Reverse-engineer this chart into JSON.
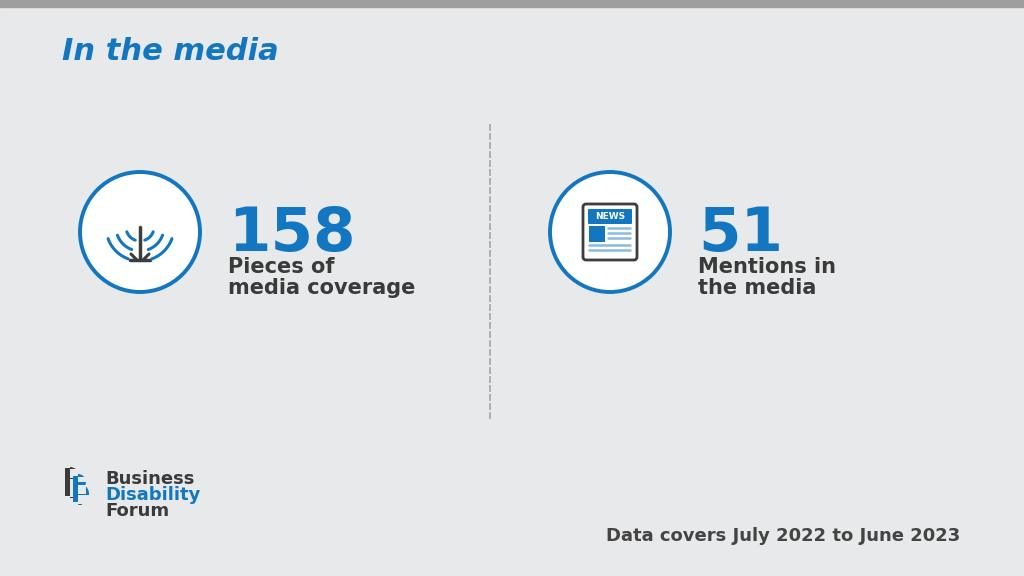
{
  "title": "In the media",
  "title_color": "#1277c0",
  "title_fontsize": 22,
  "background_color": "#e8e9ea",
  "top_bar_color": "#9e9e9e",
  "stat1_number": "158",
  "stat1_label_line1": "Pieces of",
  "stat1_label_line2": "media coverage",
  "stat2_number": "51",
  "stat2_label_line1": "Mentions in",
  "stat2_label_line2": "the media",
  "number_color": "#1277c0",
  "number_fontsize": 44,
  "label_color": "#3a3a3a",
  "label_fontsize": 15,
  "circle_color": "#1277c0",
  "circle_bg": "#ffffff",
  "divider_color": "#aaaaaa",
  "footer_text": "Data covers July 2022 to June 2023",
  "footer_color": "#444444",
  "footer_fontsize": 13,
  "bdf_dark_color": "#3a3a3a",
  "bdf_blue_color": "#1277c0",
  "bdf_fontsize": 13,
  "icon_dark": "#3d3d3d",
  "icon_blue": "#1277c0"
}
